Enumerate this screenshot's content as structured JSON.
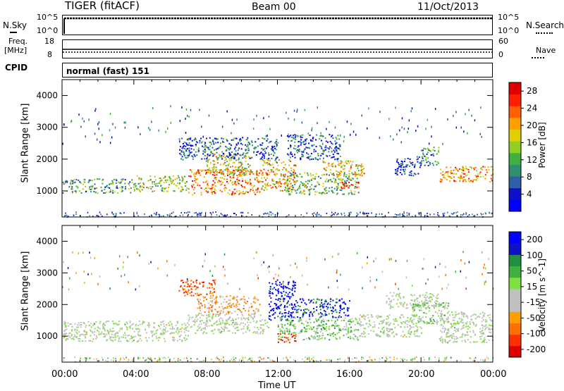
{
  "header": {
    "radar": "TIGER (fitACF)",
    "beam": "Beam 00",
    "date": "11/Oct/2013"
  },
  "noise_panel": {
    "left_label": "N.Sky",
    "left_ticks": [
      "10^5",
      "10^0"
    ],
    "right_ticks": [
      "10^5",
      "10^0"
    ],
    "right_label": "N.Search"
  },
  "freq_panel": {
    "left_label_1": "Freq.",
    "left_label_2": "[MHz]",
    "left_ticks": [
      "18",
      "8"
    ],
    "right_ticks": [
      "60",
      "0"
    ],
    "right_label": "Nave"
  },
  "cpid_panel": {
    "label": "CPID",
    "value": "normal (fast) 151"
  },
  "x_axis": {
    "ticks": [
      "00:00",
      "04:00",
      "08:00",
      "12:00",
      "16:00",
      "20:00",
      "00:00"
    ],
    "label": "Time UT"
  },
  "chart_data": [
    {
      "type": "heatmap",
      "name": "power",
      "xlabel": "Time UT",
      "ylabel": "Slant Range [km]",
      "x_range_hours": [
        0,
        24
      ],
      "y_range_km": [
        180,
        4500
      ],
      "y_ticks": [
        "1000",
        "2000",
        "3000",
        "4000"
      ],
      "colorbar": {
        "label": "Power [dB]",
        "ticks": [
          "28",
          "24",
          "20",
          "16",
          "12",
          "8",
          "4"
        ],
        "range": [
          0,
          30
        ],
        "colors": [
          "#0000ff",
          "#1010c8",
          "#2f5fa8",
          "#2f8f6f",
          "#40b040",
          "#90d020",
          "#e0d000",
          "#ffa000",
          "#ff6000",
          "#ff2000",
          "#e00000"
        ]
      },
      "bands": [
        {
          "t0": 0.0,
          "t1": 4.0,
          "r0": 950,
          "r1": 1400,
          "level": 11
        },
        {
          "t0": 4.0,
          "t1": 7.0,
          "r0": 1000,
          "r1": 1500,
          "level": 15
        },
        {
          "t0": 7.0,
          "t1": 11.0,
          "r0": 900,
          "r1": 1700,
          "level": 22
        },
        {
          "t0": 8.0,
          "t1": 10.5,
          "r0": 1500,
          "r1": 2200,
          "level": 17
        },
        {
          "t0": 11.0,
          "t1": 13.0,
          "r0": 1000,
          "r1": 2000,
          "level": 19
        },
        {
          "t0": 12.5,
          "t1": 16.5,
          "r0": 900,
          "r1": 1600,
          "level": 13
        },
        {
          "t0": 14.5,
          "t1": 16.8,
          "r0": 1500,
          "r1": 2000,
          "level": 18
        },
        {
          "t0": 15.5,
          "t1": 16.5,
          "r0": 1050,
          "r1": 1300,
          "level": 27
        },
        {
          "t0": 6.5,
          "t1": 12.0,
          "r0": 2000,
          "r1": 2700,
          "level": 7
        },
        {
          "t0": 12.5,
          "t1": 15.5,
          "r0": 2000,
          "r1": 2800,
          "level": 6
        },
        {
          "t0": 18.5,
          "t1": 20.0,
          "r0": 1500,
          "r1": 2100,
          "level": 5
        },
        {
          "t0": 20.0,
          "t1": 21.0,
          "r0": 1800,
          "r1": 2400,
          "level": 10
        },
        {
          "t0": 21.0,
          "t1": 24.0,
          "r0": 1300,
          "r1": 1800,
          "level": 21
        }
      ]
    },
    {
      "type": "heatmap",
      "name": "velocity",
      "xlabel": "Time UT",
      "ylabel": "Slant Range [km]",
      "x_range_hours": [
        0,
        24
      ],
      "y_range_km": [
        180,
        4500
      ],
      "y_ticks": [
        "1000",
        "2000",
        "3000",
        "4000"
      ],
      "colorbar": {
        "label": "Velocity [m s^-1]",
        "ticks": [
          "200",
          "100",
          "50",
          "15",
          "-15",
          "-50",
          "-100",
          "-200"
        ],
        "range": [
          -250,
          250
        ],
        "colors": [
          "#e00000",
          "#ff3000",
          "#ff7000",
          "#ffa000",
          "#c0c0c0",
          "#c0c0c0",
          "#80e040",
          "#40b040",
          "#209040",
          "#1010c8",
          "#0000ff"
        ]
      },
      "bands": [
        {
          "t0": 0.0,
          "t1": 7.0,
          "r0": 850,
          "r1": 1500,
          "level": 0
        },
        {
          "t0": 7.0,
          "t1": 11.5,
          "r0": 1100,
          "r1": 1700,
          "level": 0
        },
        {
          "t0": 7.5,
          "t1": 11.0,
          "r0": 1700,
          "r1": 2300,
          "level": -90
        },
        {
          "t0": 6.5,
          "t1": 8.5,
          "r0": 2300,
          "r1": 2800,
          "level": -160
        },
        {
          "t0": 11.5,
          "t1": 13.0,
          "r0": 1500,
          "r1": 2800,
          "level": 220
        },
        {
          "t0": 12.0,
          "t1": 16.5,
          "r0": 900,
          "r1": 1600,
          "level": 60
        },
        {
          "t0": 12.0,
          "t1": 13.0,
          "r0": 800,
          "r1": 1100,
          "level": -180
        },
        {
          "t0": 13.0,
          "t1": 16.0,
          "r0": 1600,
          "r1": 2200,
          "level": 180
        },
        {
          "t0": 16.5,
          "t1": 20.0,
          "r0": 1000,
          "r1": 1700,
          "level": 0
        },
        {
          "t0": 18.0,
          "t1": 21.0,
          "r0": 1900,
          "r1": 2400,
          "level": 0
        },
        {
          "t0": 19.5,
          "t1": 21.5,
          "r0": 1400,
          "r1": 2100,
          "level": 45
        },
        {
          "t0": 21.0,
          "t1": 24.0,
          "r0": 800,
          "r1": 1800,
          "level": 0
        }
      ]
    }
  ]
}
